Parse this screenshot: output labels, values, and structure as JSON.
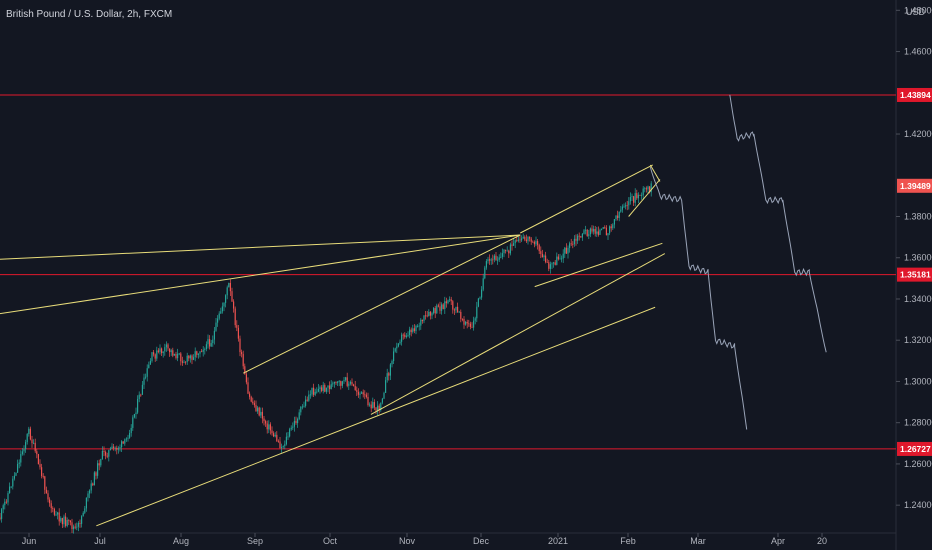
{
  "header": {
    "symbol_title": "British Pound / U.S. Dollar, 2h, FXCM",
    "currency": "USD"
  },
  "colors": {
    "background": "#131722",
    "axis_text": "#b2b5be",
    "horizontal_line": "#e0182c",
    "trendline": "#e8dc7a",
    "candle_up": "#26a69a",
    "candle_down": "#ef5350",
    "projection": "#9aa4b8",
    "last_price_label": "#ef5350"
  },
  "chart_data": {
    "type": "candlestick",
    "title": "British Pound / U.S. Dollar, 2h, FXCM",
    "y_unit": "USD",
    "ylim": [
      1.2265,
      1.485
    ],
    "y_ticks": [
      "1.48000",
      "1.46000",
      "1.42000",
      "1.38000",
      "1.36000",
      "1.34000",
      "1.32000",
      "1.30000",
      "1.28000",
      "1.26000",
      "1.24000"
    ],
    "x_ticks": [
      "Jun",
      "Jul",
      "Aug",
      "Sep",
      "Oct",
      "Nov",
      "Dec",
      "2021",
      "Feb",
      "Mar",
      "Apr",
      "20"
    ],
    "x_range": [
      "2020-05-29",
      "2021-06-05"
    ],
    "horizontal_levels": [
      {
        "value": 1.43894,
        "label": "1.43894"
      },
      {
        "value": 1.35181,
        "label": "1.35181"
      },
      {
        "value": 1.26727,
        "label": "1.26727"
      }
    ],
    "last_price": {
      "value": 1.39489,
      "label": "1.39489"
    },
    "price_path": [
      [
        "2020-05-29",
        1.234
      ],
      [
        "2020-06-10",
        1.276
      ],
      [
        "2020-06-20",
        1.236
      ],
      [
        "2020-06-30",
        1.228
      ],
      [
        "2020-07-10",
        1.264
      ],
      [
        "2020-07-20",
        1.27
      ],
      [
        "2020-07-31",
        1.312
      ],
      [
        "2020-08-06",
        1.316
      ],
      [
        "2020-08-14",
        1.31
      ],
      [
        "2020-08-25",
        1.32
      ],
      [
        "2020-09-01",
        1.347
      ],
      [
        "2020-09-09",
        1.293
      ],
      [
        "2020-09-23",
        1.268
      ],
      [
        "2020-10-05",
        1.295
      ],
      [
        "2020-10-20",
        1.3
      ],
      [
        "2020-11-02",
        1.286
      ],
      [
        "2020-11-10",
        1.32
      ],
      [
        "2020-12-01",
        1.339
      ],
      [
        "2020-12-11",
        1.325
      ],
      [
        "2020-12-17",
        1.357
      ],
      [
        "2020-12-31",
        1.368
      ],
      [
        "2021-01-05",
        1.37
      ],
      [
        "2021-01-12",
        1.355
      ],
      [
        "2021-01-26",
        1.372
      ],
      [
        "2021-02-05",
        1.373
      ],
      [
        "2021-02-12",
        1.386
      ],
      [
        "2021-02-18",
        1.39
      ],
      [
        "2021-02-24",
        1.395
      ]
    ],
    "trendlines": [
      {
        "from": [
          "2020-05-24",
          1.359
        ],
        "to": [
          "2020-12-31",
          1.371
        ]
      },
      {
        "from": [
          "2020-05-24",
          1.332
        ],
        "to": [
          "2020-12-31",
          1.371
        ]
      },
      {
        "from": [
          "2020-09-07",
          1.304
        ],
        "to": [
          "2020-12-31",
          1.371
        ]
      },
      {
        "from": [
          "2020-07-08",
          1.23
        ],
        "to": [
          "2021-02-25",
          1.336
        ]
      },
      {
        "from": [
          "2020-10-30",
          1.284
        ],
        "to": [
          "2021-02-29",
          1.362
        ]
      },
      {
        "from": [
          "2021-01-06",
          1.346
        ],
        "to": [
          "2021-02-28",
          1.367
        ]
      },
      {
        "from": [
          "2020-12-31",
          1.372
        ],
        "to": [
          "2021-02-24",
          1.405
        ]
      },
      {
        "from": [
          "2021-02-14",
          1.38
        ],
        "to": [
          "2021-02-27",
          1.398
        ]
      },
      {
        "from": [
          "2021-02-23",
          1.405
        ],
        "to": [
          "2021-02-27",
          1.397
        ]
      }
    ],
    "projections": [
      [
        [
          "2021-02-23",
          1.404
        ],
        [
          "2021-02-27",
          1.39
        ],
        [
          "2021-03-08",
          1.388
        ],
        [
          "2021-03-11",
          1.356
        ],
        [
          "2021-03-19",
          1.353
        ],
        [
          "2021-03-22",
          1.32
        ],
        [
          "2021-03-30",
          1.317
        ],
        [
          "2021-04-04",
          1.277
        ]
      ],
      [
        [
          "2021-03-28",
          1.439
        ],
        [
          "2021-03-31",
          1.418
        ],
        [
          "2021-04-07",
          1.42
        ],
        [
          "2021-04-12",
          1.388
        ],
        [
          "2021-04-19",
          1.388
        ],
        [
          "2021-04-24",
          1.353
        ],
        [
          "2021-04-30",
          1.353
        ],
        [
          "2021-05-07",
          1.314
        ]
      ]
    ]
  }
}
